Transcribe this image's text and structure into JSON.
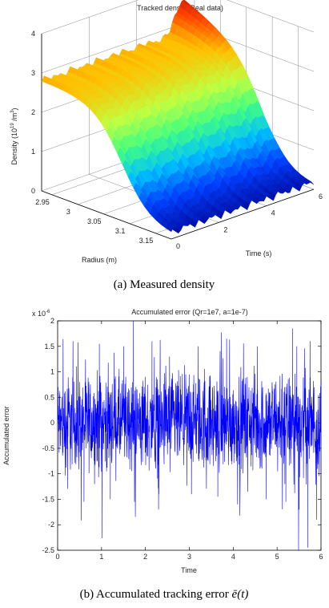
{
  "chart_data": [
    {
      "type": "surface",
      "title": "Tracked density(Real data)",
      "zlabel": "Density (10",
      "zlabel_sup": "19",
      "zlabel_unit": " /m",
      "zlabel_unit_sup": "3",
      "zlabel_close": ")",
      "xlabel": "Radius (m)",
      "ylabel": "Time (s)",
      "zlim": [
        0,
        4
      ],
      "z_ticks": [
        "0",
        "1",
        "2",
        "3",
        "4"
      ],
      "radius_ticks": [
        "2.95",
        "3",
        "3.05",
        "3.1",
        "3.15"
      ],
      "time_ticks": [
        "0",
        "2",
        "4",
        "6"
      ],
      "radius_range": [
        2.93,
        3.18
      ],
      "time_range": [
        0,
        6
      ],
      "density_edge_inner": 2.8,
      "density_edge_outer": 0.1,
      "density_peak": 3.9,
      "colormap": [
        "#00008f",
        "#0040ff",
        "#00c0ff",
        "#40ff80",
        "#c0ff40",
        "#ffc000",
        "#ff4000",
        "#a00000"
      ],
      "caption": "(a) Measured density"
    },
    {
      "type": "line",
      "title": "Accumulated error (Qr=1e7, a=1e-7)",
      "ylabel": "Accumulated error",
      "xlabel": "Time",
      "y_exponent": "x 10",
      "y_exponent_sup": "-6",
      "xlim": [
        0,
        6
      ],
      "ylim": [
        -2.5,
        2
      ],
      "x_ticks": [
        "0",
        "1",
        "2",
        "3",
        "4",
        "5",
        "6"
      ],
      "y_ticks": [
        "2",
        "1.5",
        "1",
        "0.5",
        "0",
        "-0.5",
        "-1",
        "-1.5",
        "-2",
        "-2.5"
      ],
      "series": [
        {
          "color": "#0000ff",
          "typical_band": [
            -0.5,
            0.5
          ],
          "max": 1.85,
          "min": -2.45,
          "spikes": [
            [
              0.35,
              1.6
            ],
            [
              0.95,
              1.55
            ],
            [
              1.5,
              1.5
            ],
            [
              2.15,
              1.6
            ],
            [
              2.55,
              1.3
            ],
            [
              3.2,
              1.5
            ],
            [
              3.85,
              1.65
            ],
            [
              4.55,
              1.5
            ],
            [
              5.35,
              1.85
            ],
            [
              5.45,
              1.5
            ],
            [
              5.75,
              1.6
            ],
            [
              0.6,
              -1.55
            ],
            [
              1.2,
              -1.5
            ],
            [
              1.75,
              -1.55
            ],
            [
              2.3,
              -1.7
            ],
            [
              3.05,
              -1.4
            ],
            [
              3.65,
              -1.45
            ],
            [
              4.1,
              -1.6
            ],
            [
              4.75,
              -1.5
            ],
            [
              5.2,
              -1.55
            ],
            [
              5.5,
              -1.7
            ],
            [
              5.7,
              -2.45
            ],
            [
              5.9,
              -1.9
            ]
          ]
        }
      ],
      "caption_prefix": "(b) Accumulated tracking error ",
      "caption_math": "ē(t)"
    }
  ]
}
